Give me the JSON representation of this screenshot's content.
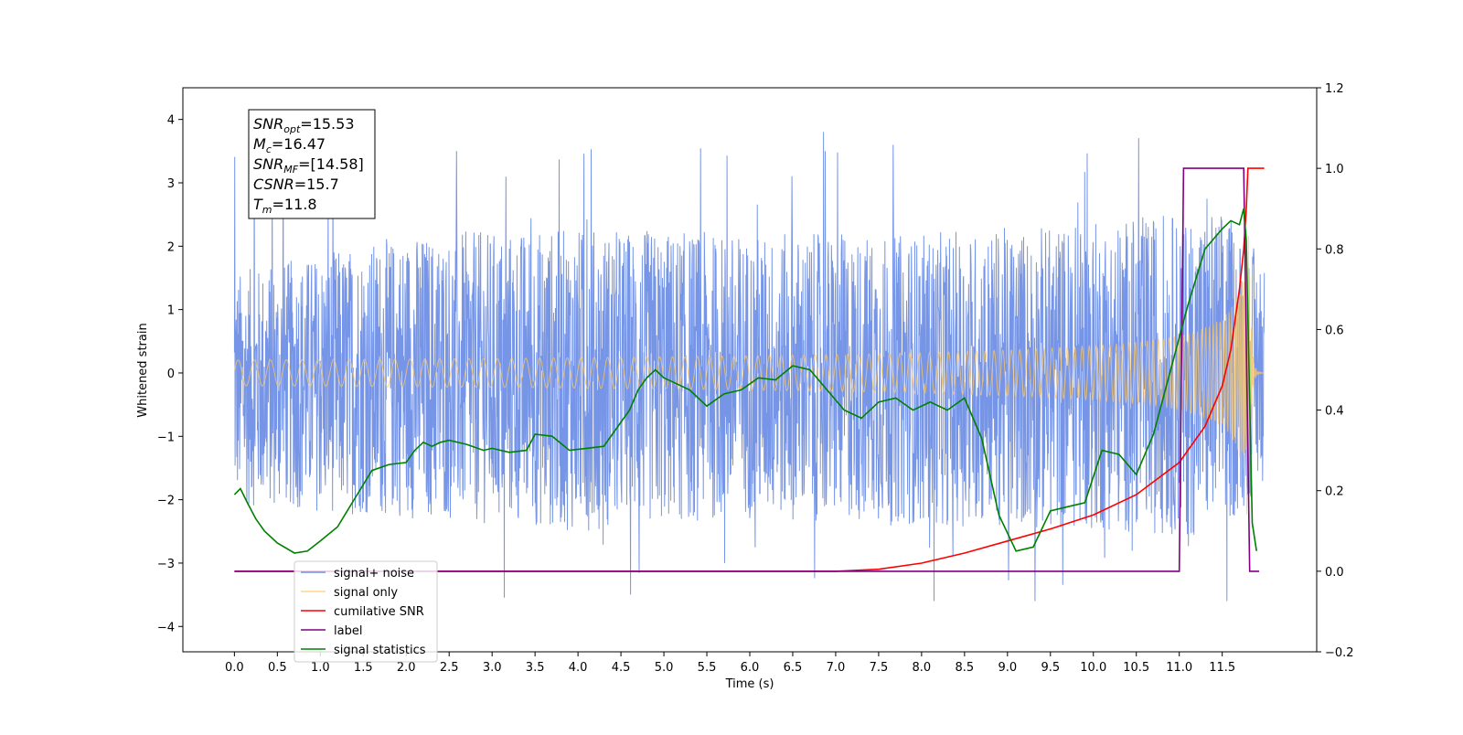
{
  "chart_data": {
    "type": "line",
    "xlabel": "Time (s)",
    "ylabel": "Whitened strain",
    "xlim": [
      -0.6,
      12.6
    ],
    "ylim": [
      -4.4,
      4.5
    ],
    "y2lim": [
      -0.2,
      1.2
    ],
    "x_ticks": [
      "0.0",
      "0.5",
      "1.0",
      "1.5",
      "2.0",
      "2.5",
      "3.0",
      "3.5",
      "4.0",
      "4.5",
      "5.0",
      "5.5",
      "6.0",
      "6.5",
      "7.0",
      "7.5",
      "8.0",
      "8.5",
      "9.0",
      "9.5",
      "10.0",
      "10.5",
      "11.0",
      "11.5"
    ],
    "y_ticks": [
      "4",
      "3",
      "2",
      "1",
      "0",
      "−1",
      "−2",
      "−3",
      "−4"
    ],
    "y2_ticks": [
      "1.2",
      "1.0",
      "0.8",
      "0.6",
      "0.4",
      "0.2",
      "0.0",
      "−0.2"
    ],
    "info_box": [
      {
        "sym": "SNR",
        "sub": "opt",
        "rest": "=15.53"
      },
      {
        "sym": "M",
        "sub": "c",
        "rest": "=16.47"
      },
      {
        "sym": "SNR",
        "sub": "MF",
        "rest": "=[14.58]"
      },
      {
        "sym": "CSNR",
        "sub": "",
        "rest": "=15.7"
      },
      {
        "sym": "T",
        "sub": "m",
        "rest": "=11.8"
      }
    ],
    "legend_position": "lower-left",
    "series": [
      {
        "name": "signal+ noise",
        "color": "#6f8fe6",
        "axis": "left",
        "style": "noise",
        "x_range": [
          0.0,
          11.99
        ],
        "envelope": [
          [
            0,
            1.6,
            -2.1
          ],
          [
            2,
            2.2,
            -2.3
          ],
          [
            4,
            2.3,
            -2.5
          ],
          [
            6,
            2.2,
            -2.3
          ],
          [
            8,
            2.2,
            -2.4
          ],
          [
            10,
            2.4,
            -2.5
          ],
          [
            11.5,
            2.6,
            -2.6
          ],
          [
            11.99,
            1.8,
            -1.7
          ]
        ]
      },
      {
        "name": "signal only",
        "color": "#ffc966",
        "axis": "left",
        "style": "chirp",
        "x_range": [
          0.0,
          11.99
        ],
        "merge_time": 11.8,
        "peak_amplitude": 3.2
      },
      {
        "name": "cumilative SNR",
        "color": "#ff0000",
        "axis": "right",
        "x": [
          0,
          7.0,
          7.5,
          8.0,
          8.5,
          9.0,
          9.5,
          10.0,
          10.5,
          11.0,
          11.3,
          11.5,
          11.6,
          11.7,
          11.75,
          11.78,
          11.8,
          11.85,
          11.99
        ],
        "values": [
          0,
          0,
          0.005,
          0.02,
          0.045,
          0.075,
          0.105,
          0.14,
          0.19,
          0.27,
          0.36,
          0.46,
          0.55,
          0.7,
          0.8,
          0.9,
          1.0,
          1.0,
          1.0
        ]
      },
      {
        "name": "label",
        "color": "#800080",
        "axis": "right",
        "x": [
          0,
          11.0,
          11.05,
          11.75,
          11.82,
          11.93
        ],
        "values": [
          0,
          0,
          1.0,
          1.0,
          0,
          0
        ]
      },
      {
        "name": "signal statistics",
        "color": "#008000",
        "axis": "right",
        "x": [
          0,
          0.07,
          0.15,
          0.25,
          0.35,
          0.5,
          0.7,
          0.85,
          1.0,
          1.2,
          1.4,
          1.6,
          1.8,
          2.0,
          2.1,
          2.2,
          2.3,
          2.4,
          2.5,
          2.7,
          2.9,
          3.0,
          3.2,
          3.4,
          3.5,
          3.7,
          3.9,
          4.1,
          4.3,
          4.4,
          4.6,
          4.7,
          4.8,
          4.9,
          5.0,
          5.1,
          5.3,
          5.5,
          5.7,
          5.9,
          6.1,
          6.3,
          6.5,
          6.7,
          6.9,
          7.1,
          7.3,
          7.5,
          7.7,
          7.9,
          8.1,
          8.3,
          8.5,
          8.7,
          8.9,
          9.1,
          9.3,
          9.5,
          9.7,
          9.9,
          10.1,
          10.3,
          10.5,
          10.7,
          10.9,
          11.1,
          11.3,
          11.5,
          11.6,
          11.7,
          11.75,
          11.78,
          11.85,
          11.9
        ],
        "values": [
          0.19,
          0.205,
          0.17,
          0.13,
          0.1,
          0.07,
          0.045,
          0.05,
          0.075,
          0.11,
          0.18,
          0.25,
          0.265,
          0.27,
          0.3,
          0.32,
          0.31,
          0.32,
          0.325,
          0.315,
          0.3,
          0.305,
          0.295,
          0.3,
          0.34,
          0.335,
          0.3,
          0.305,
          0.31,
          0.34,
          0.4,
          0.45,
          0.48,
          0.5,
          0.48,
          0.47,
          0.45,
          0.41,
          0.44,
          0.45,
          0.48,
          0.475,
          0.51,
          0.5,
          0.45,
          0.4,
          0.38,
          0.42,
          0.43,
          0.4,
          0.42,
          0.4,
          0.43,
          0.33,
          0.14,
          0.05,
          0.06,
          0.15,
          0.16,
          0.17,
          0.3,
          0.29,
          0.24,
          0.34,
          0.5,
          0.66,
          0.8,
          0.85,
          0.87,
          0.86,
          0.9,
          0.82,
          0.12,
          0.05
        ]
      }
    ]
  }
}
